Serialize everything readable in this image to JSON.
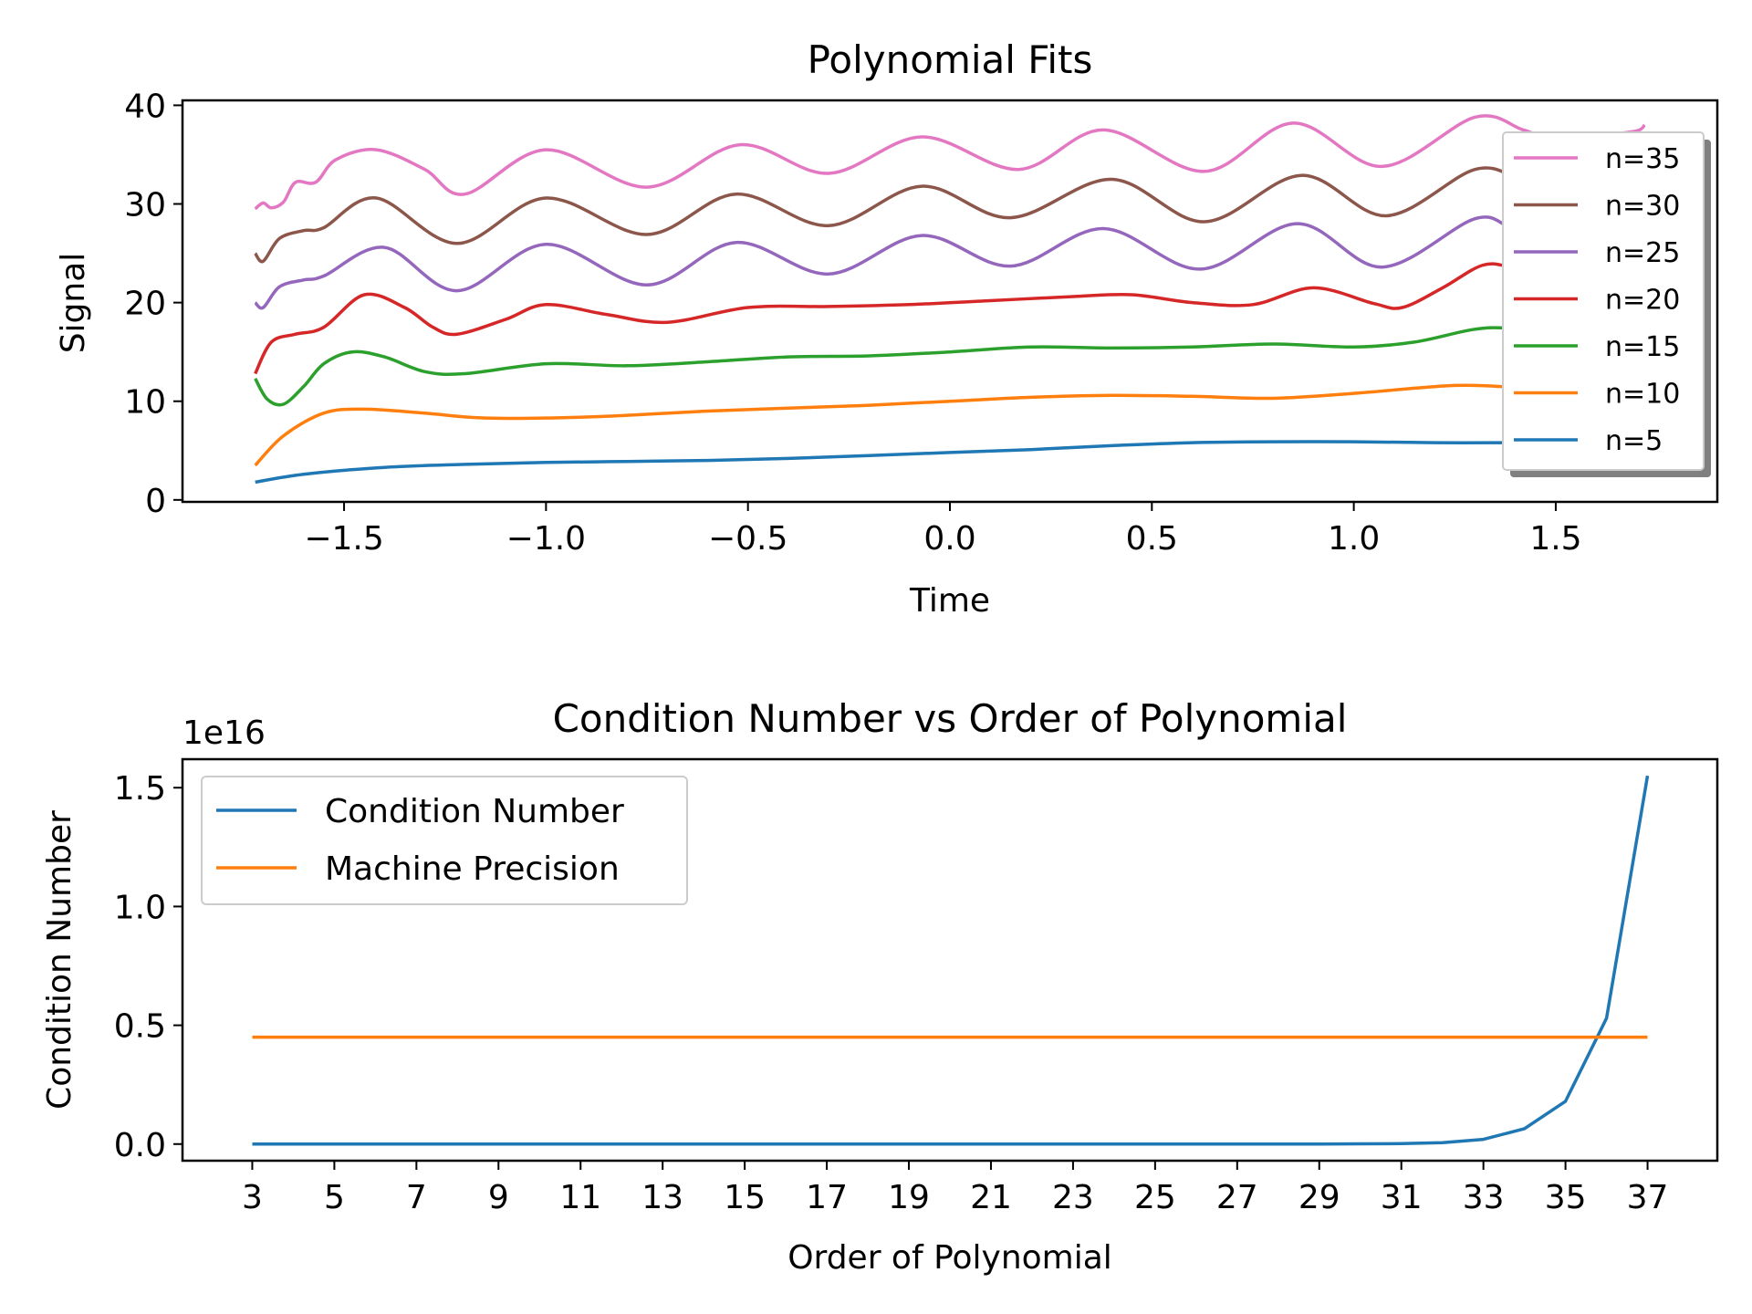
{
  "chart_data": [
    {
      "type": "line",
      "title": "Polynomial Fits",
      "xlabel": "Time",
      "ylabel": "Signal",
      "xlim": [
        -1.9,
        1.9
      ],
      "ylim": [
        -0.2,
        40.5
      ],
      "xticks": [
        -1.5,
        -1.0,
        -0.5,
        0.0,
        0.5,
        1.0,
        1.5
      ],
      "xtick_labels": [
        "−1.5",
        "−1.0",
        "−0.5",
        "0.0",
        "0.5",
        "1.0",
        "1.5"
      ],
      "yticks": [
        0,
        10,
        20,
        30,
        40
      ],
      "ytick_labels": [
        "0",
        "10",
        "20",
        "30",
        "40"
      ],
      "grid": false,
      "legend_position": "right",
      "legend_order": [
        "n=35",
        "n=30",
        "n=25",
        "n=20",
        "n=15",
        "n=10",
        "n=5"
      ],
      "series": [
        {
          "name": "n=5",
          "color": "#1f77b4",
          "points": [
            [
              -1.72,
              1.8
            ],
            [
              -1.6,
              2.6
            ],
            [
              -1.4,
              3.3
            ],
            [
              -1.2,
              3.6
            ],
            [
              -1.0,
              3.8
            ],
            [
              -0.8,
              3.9
            ],
            [
              -0.6,
              4.0
            ],
            [
              -0.4,
              4.2
            ],
            [
              -0.2,
              4.5
            ],
            [
              0.0,
              4.8
            ],
            [
              0.2,
              5.1
            ],
            [
              0.4,
              5.5
            ],
            [
              0.6,
              5.8
            ],
            [
              0.8,
              5.9
            ],
            [
              1.0,
              5.9
            ],
            [
              1.2,
              5.8
            ],
            [
              1.4,
              5.8
            ],
            [
              1.55,
              5.8
            ]
          ]
        },
        {
          "name": "n=10",
          "color": "#ff7f0e",
          "points": [
            [
              -1.72,
              3.5
            ],
            [
              -1.65,
              6.5
            ],
            [
              -1.55,
              8.8
            ],
            [
              -1.45,
              9.2
            ],
            [
              -1.3,
              8.8
            ],
            [
              -1.15,
              8.3
            ],
            [
              -0.9,
              8.4
            ],
            [
              -0.6,
              9.0
            ],
            [
              -0.4,
              9.3
            ],
            [
              -0.2,
              9.6
            ],
            [
              0.0,
              10.0
            ],
            [
              0.2,
              10.4
            ],
            [
              0.4,
              10.6
            ],
            [
              0.6,
              10.5
            ],
            [
              0.8,
              10.3
            ],
            [
              1.0,
              10.8
            ],
            [
              1.25,
              11.6
            ],
            [
              1.4,
              11.4
            ],
            [
              1.55,
              11.0
            ]
          ]
        },
        {
          "name": "n=15",
          "color": "#2ca02c",
          "points": [
            [
              -1.72,
              12.3
            ],
            [
              -1.69,
              10.2
            ],
            [
              -1.65,
              9.7
            ],
            [
              -1.6,
              11.5
            ],
            [
              -1.55,
              13.8
            ],
            [
              -1.48,
              15.0
            ],
            [
              -1.4,
              14.5
            ],
            [
              -1.3,
              13.0
            ],
            [
              -1.2,
              12.8
            ],
            [
              -1.0,
              13.8
            ],
            [
              -0.8,
              13.6
            ],
            [
              -0.6,
              14.0
            ],
            [
              -0.4,
              14.5
            ],
            [
              -0.2,
              14.6
            ],
            [
              0.0,
              15.0
            ],
            [
              0.2,
              15.5
            ],
            [
              0.4,
              15.4
            ],
            [
              0.6,
              15.5
            ],
            [
              0.8,
              15.8
            ],
            [
              1.0,
              15.5
            ],
            [
              1.15,
              16.0
            ],
            [
              1.3,
              17.3
            ],
            [
              1.4,
              17.4
            ],
            [
              1.55,
              17.0
            ]
          ]
        },
        {
          "name": "n=20",
          "color": "#d62728",
          "points": [
            [
              -1.72,
              12.8
            ],
            [
              -1.68,
              16.0
            ],
            [
              -1.62,
              16.8
            ],
            [
              -1.55,
              17.5
            ],
            [
              -1.45,
              20.8
            ],
            [
              -1.35,
              19.5
            ],
            [
              -1.28,
              17.5
            ],
            [
              -1.22,
              16.8
            ],
            [
              -1.1,
              18.3
            ],
            [
              -1.0,
              19.8
            ],
            [
              -0.85,
              18.8
            ],
            [
              -0.7,
              18.0
            ],
            [
              -0.5,
              19.5
            ],
            [
              -0.3,
              19.6
            ],
            [
              -0.1,
              19.8
            ],
            [
              0.1,
              20.2
            ],
            [
              0.3,
              20.6
            ],
            [
              0.45,
              20.8
            ],
            [
              0.6,
              20.0
            ],
            [
              0.75,
              19.8
            ],
            [
              0.9,
              21.5
            ],
            [
              1.05,
              19.9
            ],
            [
              1.12,
              19.5
            ],
            [
              1.22,
              21.5
            ],
            [
              1.32,
              23.8
            ],
            [
              1.4,
              23.6
            ],
            [
              1.55,
              23.2
            ]
          ]
        },
        {
          "name": "n=25",
          "color": "#9467bd",
          "points": [
            [
              -1.72,
              20.0
            ],
            [
              -1.7,
              19.5
            ],
            [
              -1.66,
              21.6
            ],
            [
              -1.6,
              22.3
            ],
            [
              -1.55,
              22.7
            ],
            [
              -1.4,
              25.6
            ],
            [
              -1.22,
              21.2
            ],
            [
              -1.0,
              25.9
            ],
            [
              -0.75,
              21.8
            ],
            [
              -0.53,
              26.1
            ],
            [
              -0.3,
              22.9
            ],
            [
              -0.07,
              26.8
            ],
            [
              0.15,
              23.7
            ],
            [
              0.38,
              27.5
            ],
            [
              0.62,
              23.4
            ],
            [
              0.86,
              28.0
            ],
            [
              1.07,
              23.6
            ],
            [
              1.3,
              28.5
            ],
            [
              1.4,
              27.5
            ],
            [
              1.55,
              27.0
            ]
          ]
        },
        {
          "name": "n=30",
          "color": "#8c564b",
          "points": [
            [
              -1.72,
              25.0
            ],
            [
              -1.7,
              24.2
            ],
            [
              -1.66,
              26.5
            ],
            [
              -1.6,
              27.3
            ],
            [
              -1.55,
              27.6
            ],
            [
              -1.42,
              30.6
            ],
            [
              -1.22,
              26.0
            ],
            [
              -1.0,
              30.6
            ],
            [
              -0.75,
              26.9
            ],
            [
              -0.53,
              31.0
            ],
            [
              -0.3,
              27.8
            ],
            [
              -0.07,
              31.8
            ],
            [
              0.15,
              28.6
            ],
            [
              0.4,
              32.5
            ],
            [
              0.63,
              28.2
            ],
            [
              0.87,
              32.9
            ],
            [
              1.08,
              28.8
            ],
            [
              1.3,
              33.5
            ],
            [
              1.42,
              32.5
            ],
            [
              1.55,
              32.0
            ]
          ]
        },
        {
          "name": "n=35",
          "color": "#e377c2",
          "points": [
            [
              -1.72,
              29.5
            ],
            [
              -1.7,
              30.1
            ],
            [
              -1.68,
              29.6
            ],
            [
              -1.65,
              30.2
            ],
            [
              -1.62,
              32.2
            ],
            [
              -1.57,
              32.2
            ],
            [
              -1.52,
              34.5
            ],
            [
              -1.42,
              35.5
            ],
            [
              -1.3,
              33.5
            ],
            [
              -1.2,
              31.0
            ],
            [
              -1.0,
              35.5
            ],
            [
              -0.75,
              31.7
            ],
            [
              -0.52,
              36.0
            ],
            [
              -0.3,
              33.1
            ],
            [
              -0.07,
              36.8
            ],
            [
              0.17,
              33.5
            ],
            [
              0.38,
              37.5
            ],
            [
              0.63,
              33.3
            ],
            [
              0.85,
              38.2
            ],
            [
              1.07,
              33.8
            ],
            [
              1.3,
              38.8
            ],
            [
              1.42,
              37.5
            ],
            [
              1.5,
              36.5
            ],
            [
              1.62,
              37.0
            ],
            [
              1.7,
              37.4
            ],
            [
              1.72,
              38.0
            ]
          ]
        }
      ]
    },
    {
      "type": "line",
      "title": "Condition Number vs Order of Polynomial",
      "xlabel": "Order of Polynomial",
      "ylabel": "Condition Number",
      "offset_label": "1e16",
      "xlim": [
        1.3,
        38.7
      ],
      "ylim": [
        -0.07,
        1.62
      ],
      "xticks": [
        3,
        5,
        7,
        9,
        11,
        13,
        15,
        17,
        19,
        21,
        23,
        25,
        27,
        29,
        31,
        33,
        35,
        37
      ],
      "xtick_labels": [
        "3",
        "5",
        "7",
        "9",
        "11",
        "13",
        "15",
        "17",
        "19",
        "21",
        "23",
        "25",
        "27",
        "29",
        "31",
        "33",
        "35",
        "37"
      ],
      "yticks": [
        0.0,
        0.5,
        1.0,
        1.5
      ],
      "ytick_labels": [
        "0.0",
        "0.5",
        "1.0",
        "1.5"
      ],
      "grid": false,
      "legend_position": "top-left",
      "series": [
        {
          "name": "Condition Number",
          "color": "#1f77b4",
          "points": [
            [
              3,
              0
            ],
            [
              4,
              0
            ],
            [
              5,
              0
            ],
            [
              6,
              0
            ],
            [
              7,
              0
            ],
            [
              8,
              0
            ],
            [
              9,
              0
            ],
            [
              10,
              0
            ],
            [
              11,
              0
            ],
            [
              12,
              0
            ],
            [
              13,
              0
            ],
            [
              14,
              0
            ],
            [
              15,
              0
            ],
            [
              16,
              0
            ],
            [
              17,
              0
            ],
            [
              18,
              0
            ],
            [
              19,
              0
            ],
            [
              20,
              0
            ],
            [
              21,
              0
            ],
            [
              22,
              0
            ],
            [
              23,
              0
            ],
            [
              24,
              0
            ],
            [
              25,
              0
            ],
            [
              26,
              0
            ],
            [
              27,
              0
            ],
            [
              28,
              0
            ],
            [
              29,
              0
            ],
            [
              30,
              0.001
            ],
            [
              31,
              0.002
            ],
            [
              32,
              0.006
            ],
            [
              33,
              0.02
            ],
            [
              34,
              0.065
            ],
            [
              35,
              0.18
            ],
            [
              36,
              0.53
            ],
            [
              37,
              1.55
            ]
          ]
        },
        {
          "name": "Machine Precision",
          "color": "#ff7f0e",
          "points": [
            [
              3,
              0.45
            ],
            [
              37,
              0.45
            ]
          ]
        }
      ]
    }
  ]
}
